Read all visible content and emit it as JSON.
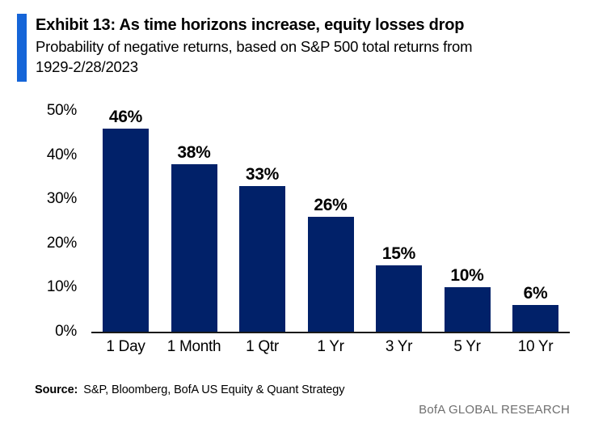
{
  "header": {
    "title": "Exhibit 13: As time horizons increase, equity losses drop",
    "subtitle_line1": "Probability of negative returns, based on S&P 500 total returns from",
    "subtitle_line2": "1929-2/28/2023"
  },
  "chart_data": {
    "type": "bar",
    "title": "Exhibit 13: As time horizons increase, equity losses drop",
    "subtitle": "Probability of negative returns, based on S&P 500 total returns from 1929-2/28/2023",
    "categories": [
      "1 Day",
      "1 Month",
      "1 Qtr",
      "1 Yr",
      "3 Yr",
      "5 Yr",
      "10 Yr"
    ],
    "values": [
      46,
      38,
      33,
      26,
      15,
      10,
      6
    ],
    "data_labels": [
      "46%",
      "38%",
      "33%",
      "26%",
      "15%",
      "10%",
      "6%"
    ],
    "yticks": [
      "0%",
      "10%",
      "20%",
      "30%",
      "40%",
      "50%"
    ],
    "ytick_values": [
      0,
      10,
      20,
      30,
      40,
      50
    ],
    "ylim": [
      0,
      50
    ],
    "xlabel": "",
    "ylabel": "",
    "grid": false,
    "legend": "none",
    "bar_color": "#012169"
  },
  "footer": {
    "source_label": "Source:",
    "source_text": "S&P, Bloomberg, BofA US Equity & Quant Strategy",
    "brand": "BofA GLOBAL RESEARCH"
  },
  "colors": {
    "accent_blue": "#1565d8",
    "bar_navy": "#012169",
    "axis_black": "#1a1a1a",
    "brand_gray": "#6f6f6f"
  }
}
